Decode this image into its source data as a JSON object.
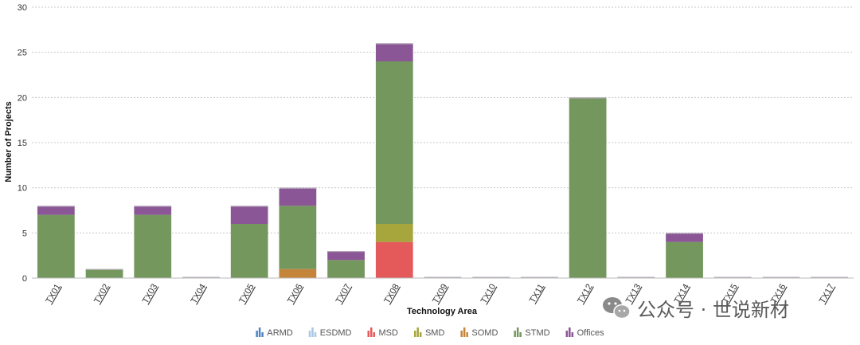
{
  "chart_data": {
    "type": "bar",
    "stacked": true,
    "xlabel": "Technology Area",
    "ylabel": "Number of Projects",
    "ylim": [
      0,
      30
    ],
    "yticks": [
      0,
      5,
      10,
      15,
      20,
      25,
      30
    ],
    "grid": true,
    "legend_position": "bottom",
    "categories": [
      "TX01",
      "TX02",
      "TX03",
      "TX04",
      "TX05",
      "TX06",
      "TX07",
      "TX08",
      "TX09",
      "TX10",
      "TX11",
      "TX12",
      "TX13",
      "TX14",
      "TX15",
      "TX16",
      "TX17"
    ],
    "series": [
      {
        "name": "ARMD",
        "color": "#4e86c4",
        "values": [
          0,
          0,
          0,
          0,
          0,
          0,
          0,
          0,
          0,
          0,
          0,
          0,
          0,
          0,
          0,
          0,
          0
        ]
      },
      {
        "name": "ESDMD",
        "color": "#a6c8e6",
        "values": [
          0,
          0,
          0,
          0,
          0,
          0,
          0,
          0,
          0,
          0,
          0,
          0,
          0,
          0,
          0,
          0,
          0
        ]
      },
      {
        "name": "MSD",
        "color": "#e45a5a",
        "values": [
          0,
          0,
          0,
          0,
          0,
          0,
          0,
          4,
          0,
          0,
          0,
          0,
          0,
          0,
          0,
          0,
          0
        ]
      },
      {
        "name": "SMD",
        "color": "#a6a63c",
        "values": [
          0,
          0,
          0,
          0,
          0,
          0,
          0,
          2,
          0,
          0,
          0,
          0,
          0,
          0,
          0,
          0,
          0
        ]
      },
      {
        "name": "SOMD",
        "color": "#c4843a",
        "values": [
          0,
          0,
          0,
          0,
          0,
          1,
          0,
          0,
          0,
          0,
          0,
          0,
          0,
          0,
          0,
          0,
          0
        ]
      },
      {
        "name": "STMD",
        "color": "#74975e",
        "values": [
          7,
          1,
          7,
          0,
          6,
          7,
          2,
          18,
          0,
          0,
          0,
          20,
          0,
          4,
          0,
          0,
          0
        ]
      },
      {
        "name": "Offices",
        "color": "#8b5695",
        "values": [
          1,
          0,
          1,
          0,
          2,
          2,
          1,
          2,
          0,
          0,
          0,
          0,
          0,
          1,
          0,
          0,
          0
        ]
      }
    ]
  },
  "watermark": {
    "text": "公众号 · 世说新材",
    "icon": "wechat-icon"
  }
}
